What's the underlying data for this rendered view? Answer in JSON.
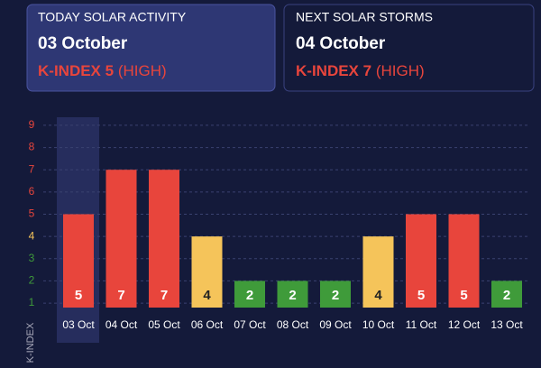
{
  "cards": [
    {
      "heading": "TODAY SOLAR ACTIVITY",
      "date": "03 October",
      "index": "K-INDEX 5",
      "level": "(HIGH)"
    },
    {
      "heading": "NEXT SOLAR STORMS",
      "date": "04 October",
      "index": "K-INDEX 7",
      "level": "(HIGH)"
    }
  ],
  "chart_data": {
    "type": "bar",
    "y_label": "K-INDEX",
    "categories": [
      "03 Oct",
      "04 Oct",
      "05 Oct",
      "06 Oct",
      "07 Oct",
      "08 Oct",
      "09 Oct",
      "10 Oct",
      "11 Oct",
      "12 Oct",
      "13 Oct"
    ],
    "values": [
      5,
      7,
      7,
      4,
      2,
      2,
      2,
      4,
      5,
      5,
      2
    ],
    "colors": [
      "#e8453c",
      "#e8453c",
      "#e8453c",
      "#f5c45a",
      "#3f9b3a",
      "#3f9b3a",
      "#3f9b3a",
      "#f5c45a",
      "#e8453c",
      "#e8453c",
      "#3f9b3a"
    ],
    "ylim": [
      0.8,
      9.2
    ],
    "yticks": [
      1,
      2,
      3,
      4,
      5,
      6,
      7,
      8,
      9
    ],
    "ytick_colors": [
      "#3f9b3a",
      "#3f9b3a",
      "#3f9b3a",
      "#f5c45a",
      "#e8453c",
      "#e8453c",
      "#e8453c",
      "#e8453c",
      "#e8453c"
    ],
    "grid": true
  }
}
